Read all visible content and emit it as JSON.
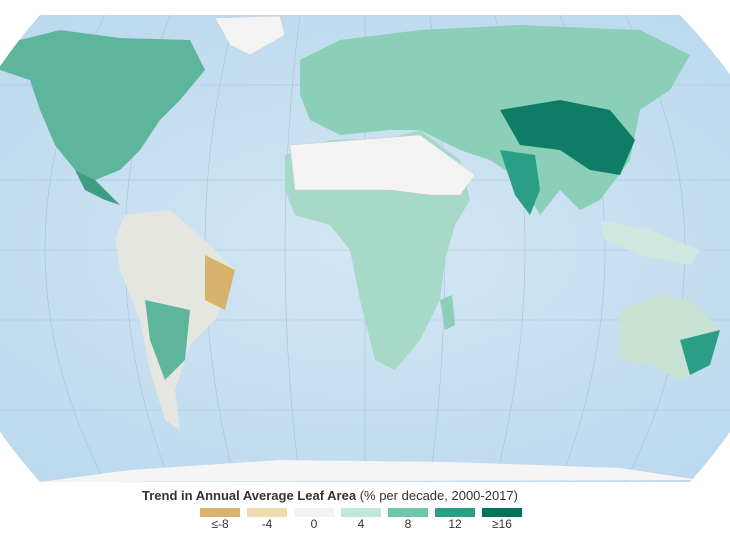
{
  "legend": {
    "title": "Trend in Annual Average Leaf Area",
    "subtitle": "(% per decade, 2000-2017)",
    "items": [
      {
        "label": "≤-8",
        "color": "#d8b36c"
      },
      {
        "label": "-4",
        "color": "#eedcad"
      },
      {
        "label": "0",
        "color": "#f2f2f2"
      },
      {
        "label": "4",
        "color": "#bfe7dd"
      },
      {
        "label": "8",
        "color": "#6fc6b0"
      },
      {
        "label": "12",
        "color": "#2b9e86"
      },
      {
        "label": "≥16",
        "color": "#00735f"
      }
    ]
  }
}
